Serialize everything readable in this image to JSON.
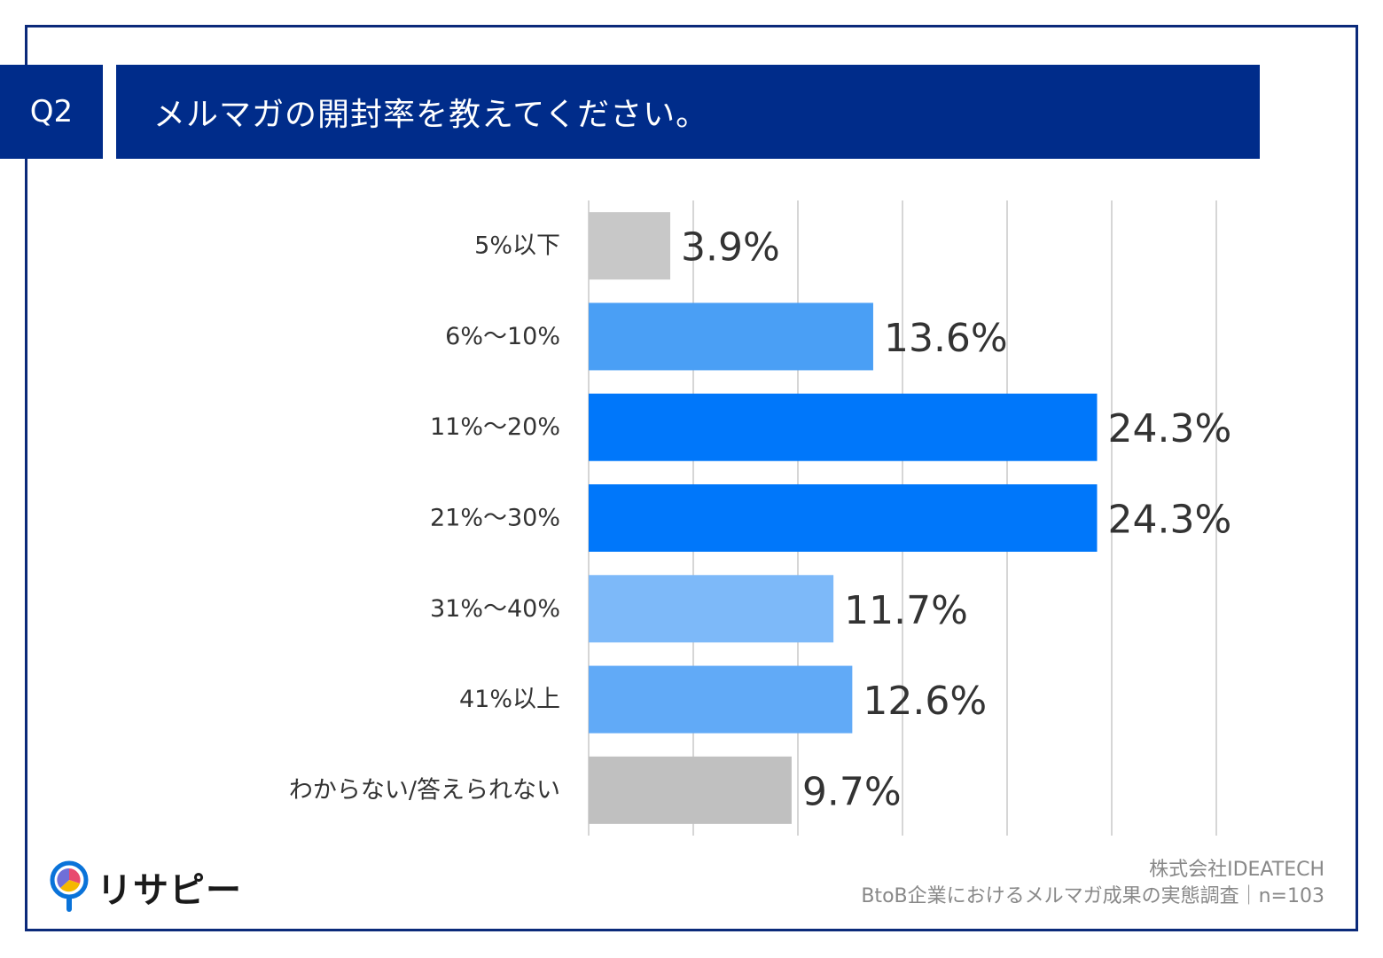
{
  "header": {
    "question_number": "Q2",
    "question_text": "メルマガの開封率を教えてください。"
  },
  "chart_data": {
    "type": "bar",
    "orientation": "horizontal",
    "title": "メルマガの開封率を教えてください。",
    "categories": [
      "5%以下",
      "6%～10%",
      "11%～20%",
      "21%～30%",
      "31%～40%",
      "41%以上",
      "わからない/答えられない"
    ],
    "values": [
      3.9,
      13.6,
      24.3,
      24.3,
      11.7,
      12.6,
      9.7
    ],
    "value_labels": [
      "3.9%",
      "13.6%",
      "24.3%",
      "24.3%",
      "11.7%",
      "12.6%",
      "9.7%"
    ],
    "colors": [
      "#c8c8c8",
      "#4a9ff5",
      "#0077fa",
      "#0077fa",
      "#7db9f9",
      "#61aaf7",
      "#c0c0c0"
    ],
    "xlim": [
      0,
      30
    ],
    "grid": true,
    "xlabel": "",
    "ylabel": ""
  },
  "logo": {
    "text": "リサピー"
  },
  "footer": {
    "company": "株式会社IDEATECH",
    "survey": "BtoB企業におけるメルマガ成果の実態調査｜n=103"
  }
}
